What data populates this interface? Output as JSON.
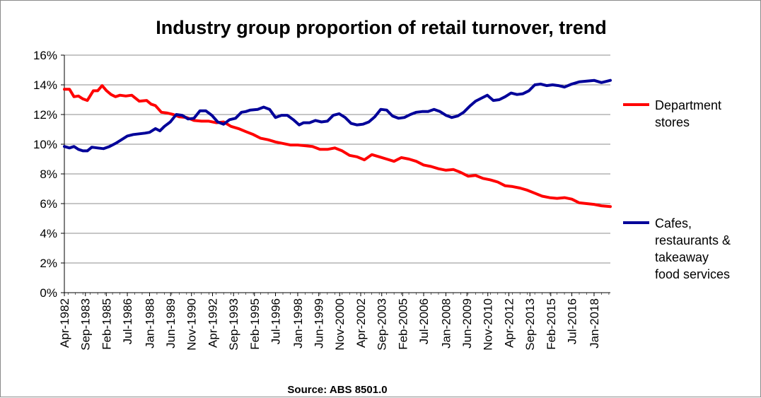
{
  "chart_data": {
    "type": "line",
    "title": "Industry group proportion of retail turnover, trend",
    "source": "Source: ABS 8501.0",
    "xlabel": "",
    "ylabel": "",
    "ylim": [
      0,
      16
    ],
    "y_ticks": [
      "0%",
      "2%",
      "4%",
      "6%",
      "8%",
      "10%",
      "12%",
      "14%",
      "16%"
    ],
    "x_range": [
      1982.25,
      2019.1
    ],
    "x_tick_labels": [
      "Apr-1982",
      "Sep-1983",
      "Feb-1985",
      "Jul-1986",
      "Jan-1988",
      "Jun-1989",
      "Nov-1990",
      "Apr-1992",
      "Sep-1993",
      "Feb-1995",
      "Jul-1996",
      "Jan-1998",
      "Jun-1999",
      "Nov-2000",
      "Apr-2002",
      "Sep-2003",
      "Feb-2005",
      "Jul-2006",
      "Jan-2008",
      "Jun-2009",
      "Nov-2010",
      "Apr-2012",
      "Sep-2013",
      "Feb-2015",
      "Jul-2016",
      "Jan-2018"
    ],
    "x_tick_values": [
      1982.25,
      1983.67,
      1985.08,
      1986.5,
      1988.0,
      1989.42,
      1990.83,
      1992.25,
      1993.67,
      1995.08,
      1996.5,
      1998.0,
      1999.42,
      2000.83,
      2002.25,
      2003.67,
      2005.08,
      2006.5,
      2008.0,
      2009.42,
      2010.83,
      2012.25,
      2013.67,
      2015.08,
      2016.5,
      2018.0
    ],
    "gridlines": "horizontal",
    "legend_position": "right",
    "series": [
      {
        "name": "Department stores",
        "color": "#ff0000",
        "x": [
          1982.25,
          1982.6,
          1982.9,
          1983.2,
          1983.5,
          1983.8,
          1984.2,
          1984.5,
          1984.8,
          1985.1,
          1985.4,
          1985.7,
          1986.0,
          1986.4,
          1986.8,
          1987.3,
          1987.8,
          1988.1,
          1988.4,
          1988.8,
          1989.2,
          1989.6,
          1990.0,
          1990.5,
          1991.0,
          1991.5,
          1992.0,
          1992.5,
          1993.0,
          1993.5,
          1994.0,
          1994.5,
          1995.0,
          1995.5,
          1996.0,
          1996.5,
          1997.0,
          1997.5,
          1998.0,
          1998.5,
          1999.0,
          1999.5,
          2000.0,
          2000.5,
          2001.0,
          2001.5,
          2002.0,
          2002.5,
          2003.0,
          2003.5,
          2004.0,
          2004.5,
          2005.0,
          2005.5,
          2006.0,
          2006.5,
          2007.0,
          2007.5,
          2008.0,
          2008.5,
          2009.0,
          2009.5,
          2010.0,
          2010.5,
          2011.0,
          2011.5,
          2012.0,
          2012.5,
          2013.0,
          2013.5,
          2014.0,
          2014.5,
          2015.0,
          2015.5,
          2016.0,
          2016.5,
          2017.0,
          2017.5,
          2018.0,
          2018.5,
          2019.1
        ],
        "values": [
          13.7,
          13.7,
          13.2,
          13.25,
          13.05,
          12.95,
          13.6,
          13.6,
          13.95,
          13.6,
          13.35,
          13.2,
          13.3,
          13.25,
          13.3,
          12.9,
          12.95,
          12.7,
          12.6,
          12.15,
          12.1,
          12.0,
          11.85,
          11.8,
          11.6,
          11.55,
          11.55,
          11.45,
          11.5,
          11.2,
          11.05,
          10.85,
          10.65,
          10.4,
          10.3,
          10.15,
          10.05,
          9.95,
          9.95,
          9.9,
          9.85,
          9.65,
          9.65,
          9.75,
          9.55,
          9.25,
          9.15,
          8.95,
          9.3,
          9.15,
          9.0,
          8.85,
          9.1,
          9.0,
          8.85,
          8.6,
          8.5,
          8.35,
          8.25,
          8.3,
          8.1,
          7.85,
          7.9,
          7.7,
          7.6,
          7.45,
          7.2,
          7.15,
          7.05,
          6.9,
          6.7,
          6.5,
          6.4,
          6.35,
          6.4,
          6.3,
          6.05,
          6.0,
          5.95,
          5.85,
          5.8
        ]
      },
      {
        "name": "Cafes, restaurants & takeaway food services",
        "color": "#000099",
        "x": [
          1982.25,
          1982.6,
          1982.9,
          1983.2,
          1983.5,
          1983.8,
          1984.1,
          1984.5,
          1984.9,
          1985.3,
          1985.7,
          1986.1,
          1986.5,
          1986.9,
          1987.3,
          1987.7,
          1988.0,
          1988.4,
          1988.7,
          1989.0,
          1989.4,
          1989.8,
          1990.2,
          1990.6,
          1991.0,
          1991.4,
          1991.8,
          1992.2,
          1992.6,
          1993.0,
          1993.4,
          1993.8,
          1994.2,
          1994.5,
          1994.8,
          1995.3,
          1995.7,
          1996.1,
          1996.5,
          1996.9,
          1997.3,
          1997.7,
          1998.1,
          1998.4,
          1998.8,
          1999.2,
          1999.6,
          2000.0,
          2000.4,
          2000.8,
          2001.2,
          2001.6,
          2002.0,
          2002.4,
          2002.8,
          2003.2,
          2003.6,
          2004.0,
          2004.4,
          2004.8,
          2005.2,
          2005.6,
          2006.0,
          2006.4,
          2006.8,
          2007.2,
          2007.6,
          2008.0,
          2008.4,
          2008.8,
          2009.2,
          2009.6,
          2010.0,
          2010.4,
          2010.8,
          2011.2,
          2011.6,
          2012.0,
          2012.4,
          2012.8,
          2013.2,
          2013.6,
          2014.0,
          2014.4,
          2014.8,
          2015.2,
          2015.6,
          2016.0,
          2016.5,
          2017.0,
          2017.5,
          2018.0,
          2018.5,
          2019.1
        ],
        "values": [
          9.85,
          9.75,
          9.85,
          9.65,
          9.55,
          9.55,
          9.8,
          9.75,
          9.7,
          9.85,
          10.05,
          10.3,
          10.55,
          10.65,
          10.7,
          10.75,
          10.8,
          11.05,
          10.9,
          11.2,
          11.5,
          12.0,
          11.95,
          11.7,
          11.75,
          12.25,
          12.25,
          11.95,
          11.5,
          11.35,
          11.65,
          11.75,
          12.15,
          12.2,
          12.3,
          12.35,
          12.5,
          12.35,
          11.8,
          11.95,
          11.95,
          11.65,
          11.3,
          11.45,
          11.45,
          11.6,
          11.5,
          11.55,
          11.95,
          12.05,
          11.8,
          11.4,
          11.3,
          11.35,
          11.5,
          11.85,
          12.35,
          12.3,
          11.9,
          11.75,
          11.8,
          12.0,
          12.15,
          12.2,
          12.2,
          12.35,
          12.2,
          11.95,
          11.8,
          11.9,
          12.15,
          12.55,
          12.9,
          13.1,
          13.3,
          12.95,
          13.0,
          13.2,
          13.45,
          13.35,
          13.4,
          13.6,
          14.0,
          14.05,
          13.95,
          14.0,
          13.95,
          13.85,
          14.05,
          14.2,
          14.25,
          14.3,
          14.15,
          14.3
        ]
      }
    ]
  }
}
